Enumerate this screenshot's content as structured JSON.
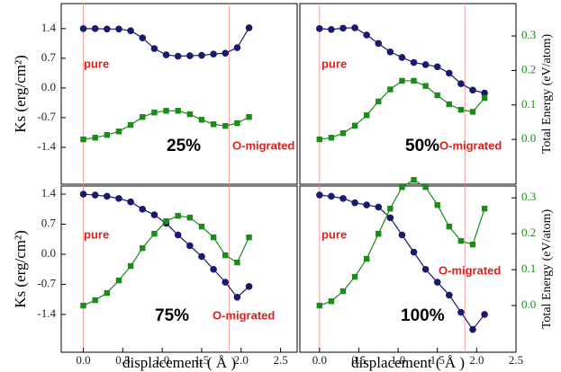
{
  "chart_data": [
    {
      "type": "line",
      "xlim": [
        -0.28,
        2.71
      ],
      "ylim": [
        -2.27,
        1.99
      ],
      "yticks": [
        1.4,
        0.7,
        {
          "value": 0,
          "label": "0.0"
        },
        -0.7,
        -1.4
      ],
      "y2lim": [
        -0.13,
        0.394
      ],
      "ylabel": "Ks (erg/cm²)",
      "vlines": [
        0,
        1.85
      ],
      "vline_color": "#f4a0a0",
      "x": [
        0,
        0.15,
        0.3,
        0.45,
        0.6,
        0.75,
        0.9,
        1.05,
        1.2,
        1.35,
        1.5,
        1.65,
        1.8,
        1.95,
        2.1
      ],
      "series": [
        {
          "color": "#191970",
          "marker": "circle",
          "values": [
            1.4,
            1.4,
            1.39,
            1.39,
            1.35,
            1.18,
            0.93,
            0.78,
            0.75,
            0.76,
            0.77,
            0.8,
            0.82,
            0.95,
            1.42
          ]
        },
        {
          "color": "#1a8c1a",
          "marker": "square",
          "axis": "y2",
          "values": [
            0,
            0.005,
            0.013,
            0.023,
            0.042,
            0.065,
            0.078,
            0.083,
            0.083,
            0.073,
            0.057,
            0.044,
            0.039,
            0.047,
            0.065
          ]
        }
      ],
      "annotations": [
        "pure",
        "O-migrated",
        "25%"
      ]
    },
    {
      "type": "line",
      "xlim": [
        -0.25,
        2.5
      ],
      "ylim": [
        -2.27,
        1.99
      ],
      "y2lim": [
        -0.13,
        0.394
      ],
      "y2ticks": [
        {
          "value": 0,
          "label": "0.0"
        },
        0.1,
        0.2,
        0.3
      ],
      "y2label": "Total Energy (eV/atom)",
      "vlines": [
        0,
        1.85
      ],
      "vline_color": "#f4a0a0",
      "x": [
        0,
        0.15,
        0.3,
        0.45,
        0.6,
        0.75,
        0.9,
        1.05,
        1.2,
        1.35,
        1.5,
        1.65,
        1.8,
        1.95,
        2.1
      ],
      "series": [
        {
          "color": "#191970",
          "marker": "circle",
          "values": [
            1.4,
            1.38,
            1.41,
            1.42,
            1.25,
            1.05,
            0.85,
            0.72,
            0.6,
            0.55,
            0.5,
            0.35,
            0.1,
            -0.05,
            -0.12
          ]
        },
        {
          "color": "#1a8c1a",
          "marker": "square",
          "axis": "y2",
          "values": [
            0,
            0.005,
            0.018,
            0.04,
            0.07,
            0.11,
            0.145,
            0.17,
            0.17,
            0.155,
            0.128,
            0.102,
            0.086,
            0.08,
            0.12
          ]
        }
      ],
      "annotations": [
        "pure",
        "O-migrated",
        "50%"
      ]
    },
    {
      "type": "line",
      "xlim": [
        -0.28,
        2.71
      ],
      "xticks": [
        {
          "value": 0,
          "label": "0.0"
        },
        0.5,
        {
          "value": 1,
          "label": "1.0"
        },
        1.5,
        {
          "value": 2,
          "label": "2.0"
        },
        2.5
      ],
      "ylim": [
        -2.28,
        1.59
      ],
      "yticks": [
        1.4,
        0.7,
        {
          "value": 0,
          "label": "0.0"
        },
        -0.7,
        -1.4
      ],
      "y2lim": [
        -0.13,
        0.333
      ],
      "ylabel": "Ks (erg/cm²)",
      "xlabel": "displacement ( Å )",
      "vlines": [
        0,
        1.85
      ],
      "vline_color": "#f4a0a0",
      "x": [
        0,
        0.15,
        0.3,
        0.45,
        0.6,
        0.75,
        0.9,
        1.05,
        1.2,
        1.35,
        1.5,
        1.65,
        1.8,
        1.95,
        2.1
      ],
      "series": [
        {
          "color": "#191970",
          "marker": "circle",
          "values": [
            1.4,
            1.38,
            1.35,
            1.3,
            1.22,
            1.05,
            0.92,
            0.72,
            0.45,
            0.2,
            -0.05,
            -0.35,
            -0.65,
            -1.0,
            -0.75
          ]
        },
        {
          "color": "#1a8c1a",
          "marker": "square",
          "axis": "y2",
          "values": [
            0,
            0.015,
            0.035,
            0.07,
            0.11,
            0.16,
            0.2,
            0.235,
            0.25,
            0.245,
            0.22,
            0.19,
            0.14,
            0.12,
            0.19
          ]
        }
      ],
      "annotations": [
        "pure",
        "O-migrated",
        "75%"
      ]
    },
    {
      "type": "line",
      "xlim": [
        -0.25,
        2.5
      ],
      "xticks": [
        {
          "value": 0,
          "label": "0.0"
        },
        0.5,
        {
          "value": 1,
          "label": "1.0"
        },
        1.5,
        {
          "value": 2,
          "label": "2.0"
        },
        2.5
      ],
      "ylim": [
        -2.28,
        1.59
      ],
      "y2lim": [
        -0.13,
        0.333
      ],
      "y2ticks": [
        {
          "value": 0,
          "label": "0.0"
        },
        0.1,
        0.2,
        0.3
      ],
      "y2label": "Total Energy (eV/atom)",
      "xlabel": "displacement ( Å )",
      "vlines": [
        0,
        1.85
      ],
      "vline_color": "#f4a0a0",
      "x": [
        0,
        0.15,
        0.3,
        0.45,
        0.6,
        0.75,
        0.9,
        1.05,
        1.2,
        1.35,
        1.5,
        1.65,
        1.8,
        1.95,
        2.1
      ],
      "series": [
        {
          "color": "#191970",
          "marker": "circle",
          "values": [
            1.38,
            1.35,
            1.3,
            1.2,
            1.15,
            1.1,
            0.85,
            0.45,
            0.05,
            -0.35,
            -0.65,
            -0.95,
            -1.35,
            -1.75,
            -1.4
          ]
        },
        {
          "color": "#1a8c1a",
          "marker": "square",
          "axis": "y2",
          "values": [
            0,
            0.012,
            0.04,
            0.08,
            0.13,
            0.2,
            0.27,
            0.33,
            0.35,
            0.33,
            0.28,
            0.22,
            0.18,
            0.17,
            0.27
          ]
        }
      ],
      "annotations": [
        "pure",
        "O-migrated",
        "100%"
      ]
    }
  ]
}
